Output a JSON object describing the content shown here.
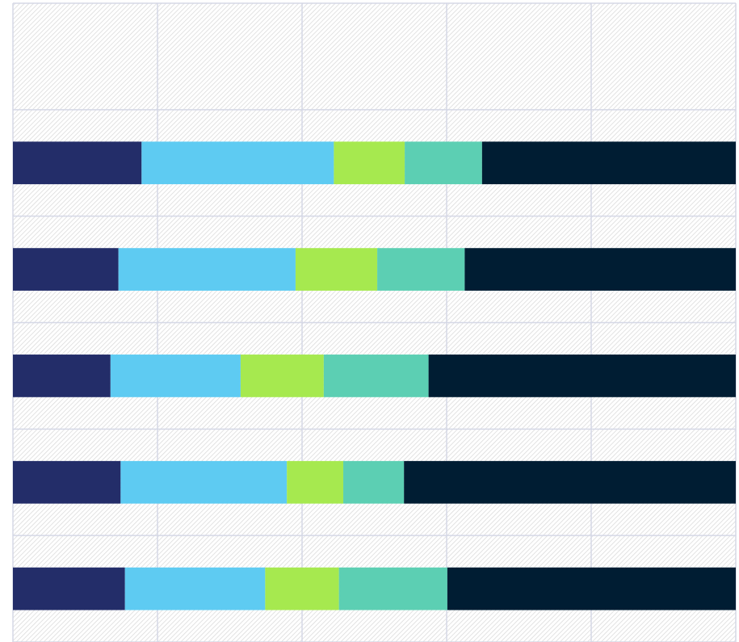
{
  "chart_data": {
    "type": "stacked_barh",
    "categories": [
      null,
      null,
      null,
      null,
      null,
      null
    ],
    "series": [
      {
        "color": "#232d69",
        "values": [
          null,
          17.8,
          14.6,
          13.5,
          14.9,
          15.5
        ]
      },
      {
        "color": "#5ecbf2",
        "values": [
          null,
          26.6,
          24.5,
          18.0,
          23.0,
          19.4
        ]
      },
      {
        "color": "#a6e94f",
        "values": [
          null,
          9.8,
          11.3,
          11.5,
          7.8,
          10.2
        ]
      },
      {
        "color": "#5ccfb3",
        "values": [
          null,
          10.7,
          12.1,
          14.5,
          8.4,
          15.0
        ]
      },
      {
        "color": "#001d33",
        "values": [
          null,
          35.1,
          37.5,
          42.5,
          45.9,
          39.9
        ]
      }
    ],
    "xlim": [
      0,
      100
    ],
    "xticks": [
      0,
      20,
      40,
      60,
      80,
      100
    ],
    "grid": true
  }
}
